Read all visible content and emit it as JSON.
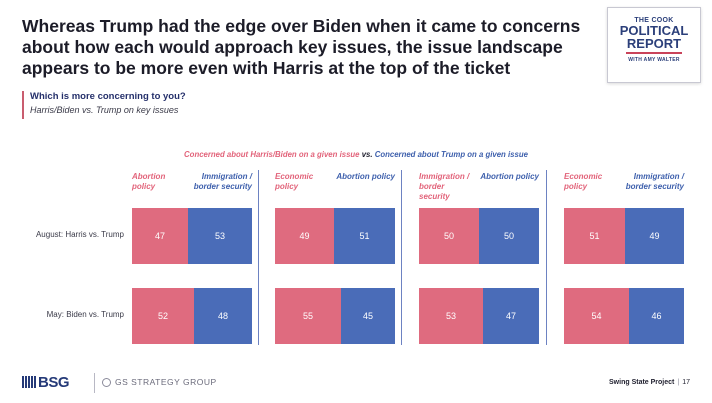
{
  "slide": {
    "title": "Whereas Trump had the edge over Biden when it came to concerns about how each would approach key issues, the issue landscape appears to be more even with Harris at the top of the ticket",
    "question": "Which is more concerning to you?",
    "subtitle": "Harris/Biden vs. Trump on key issues"
  },
  "logo": {
    "line1": "THE COOK",
    "line2": "POLITICAL",
    "line3": "REPORT",
    "line4": "WITH AMY WALTER"
  },
  "legend": {
    "harris": "Concerned about Harris/Biden on a given issue",
    "vs": "vs.",
    "trump": "Concerned about Trump on a given issue"
  },
  "footer": {
    "bsg": "BSG",
    "gs": "GS STRATEGY GROUP",
    "project": "Swing State Project",
    "page": "17"
  },
  "colors": {
    "harris": "#df6b7f",
    "trump": "#4a6cb8"
  },
  "chart_data": {
    "type": "bar",
    "stacked": true,
    "orientation": "horizontal",
    "title": "",
    "rows": [
      "August: Harris vs. Trump",
      "May: Biden vs. Trump"
    ],
    "groups": [
      {
        "harris_issue": "Abortion policy",
        "trump_issue": "Immigration / border security",
        "series": [
          {
            "name": "Concerned about Harris/Biden on a given issue",
            "values": [
              47,
              52
            ]
          },
          {
            "name": "Concerned about Trump on a given issue",
            "values": [
              53,
              48
            ]
          }
        ]
      },
      {
        "harris_issue": "Economic policy",
        "trump_issue": "Abortion policy",
        "series": [
          {
            "name": "Concerned about Harris/Biden on a given issue",
            "values": [
              49,
              55
            ]
          },
          {
            "name": "Concerned about Trump on a given issue",
            "values": [
              51,
              45
            ]
          }
        ]
      },
      {
        "harris_issue": "Immigration / border security",
        "trump_issue": "Abortion policy",
        "series": [
          {
            "name": "Concerned about Harris/Biden on a given issue",
            "values": [
              50,
              53
            ]
          },
          {
            "name": "Concerned about Trump on a given issue",
            "values": [
              50,
              47
            ]
          }
        ]
      },
      {
        "harris_issue": "Economic policy",
        "trump_issue": "Immigration / border security",
        "series": [
          {
            "name": "Concerned about Harris/Biden on a given issue",
            "values": [
              51,
              54
            ]
          },
          {
            "name": "Concerned about Trump on a given issue",
            "values": [
              49,
              46
            ]
          }
        ]
      }
    ]
  }
}
